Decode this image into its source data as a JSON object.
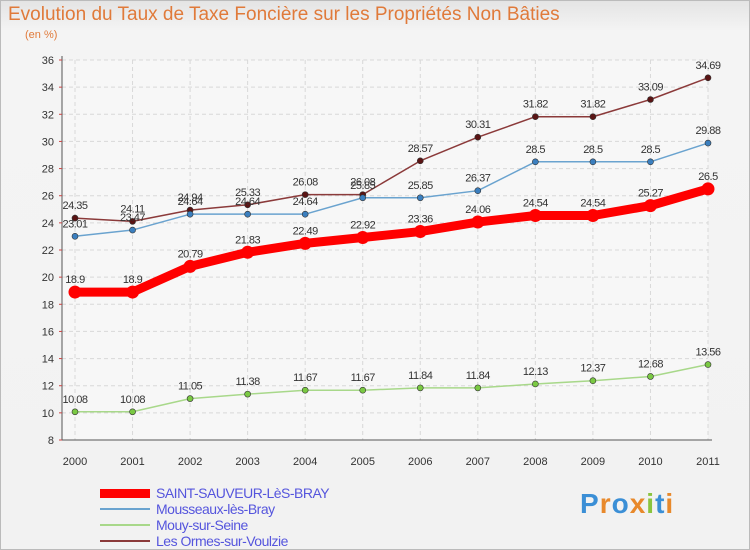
{
  "header": {
    "title": "Evolution du Taux de Taxe Foncière sur les Propriétés Non Bâties",
    "subtitle": "(en %)"
  },
  "logo": {
    "text": "Proxiti",
    "colors": [
      "#3b8fd6",
      "#e8892b",
      "#3b8fd6",
      "#e8892b",
      "#8ac43f",
      "#3b8fd6",
      "#e8892b"
    ]
  },
  "chart_data": {
    "type": "line",
    "title": "Evolution du Taux de Taxe Foncière sur les Propriétés Non Bâties",
    "ylabel": "(en %)",
    "categories": [
      "2000",
      "2001",
      "2002",
      "2003",
      "2004",
      "2005",
      "2006",
      "2007",
      "2008",
      "2009",
      "2010",
      "2011"
    ],
    "ylim": [
      8,
      36
    ],
    "yticks": [
      "8",
      "10",
      "12",
      "14",
      "16",
      "18",
      "20",
      "22",
      "24",
      "26",
      "28",
      "30",
      "32",
      "34",
      "36"
    ],
    "grid": true,
    "legend_position": "bottom",
    "series": [
      {
        "name": "Les Ormes-sur-Voulzie",
        "color": "#8b3a3a",
        "dot": "#5a1414",
        "values": [
          24.35,
          24.11,
          24.94,
          25.33,
          26.08,
          26.08,
          28.57,
          30.31,
          31.82,
          31.82,
          33.09,
          34.69
        ],
        "labels": [
          "24.35",
          "24.11",
          "24.94",
          "25.33",
          "26.08",
          "26.08",
          "28.57",
          "30.31",
          "31.82",
          "31.82",
          "33.09",
          "34.69"
        ]
      },
      {
        "name": "Mousseaux-lès-Bray",
        "color": "#6aa3cf",
        "dot": "#3b7fbf",
        "values": [
          23.01,
          23.47,
          24.64,
          24.64,
          24.64,
          25.85,
          25.85,
          26.37,
          28.5,
          28.5,
          28.5,
          29.88
        ],
        "labels": [
          "23.01",
          "23.47",
          "24.64",
          "24.64",
          "24.64",
          "25.85",
          "25.85",
          "26.37",
          "28.5",
          "28.5",
          "28.5",
          "29.88"
        ]
      },
      {
        "name": "Mouy-sur-Seine",
        "color": "#a8d88a",
        "dot": "#7ac943",
        "values": [
          10.08,
          10.08,
          11.05,
          11.38,
          11.67,
          11.67,
          11.84,
          11.84,
          12.13,
          12.37,
          12.68,
          13.56
        ],
        "labels": [
          "10.08",
          "10.08",
          "11.05",
          "11.38",
          "11.67",
          "11.67",
          "11.84",
          "11.84",
          "12.13",
          "12.37",
          "12.68",
          "13.56"
        ]
      },
      {
        "name": "SAINT-SAUVEUR-LèS-BRAY",
        "color": "#ff0000",
        "dot": "#ff0000",
        "values": [
          18.9,
          18.9,
          20.79,
          21.83,
          22.49,
          22.92,
          23.36,
          24.06,
          24.54,
          24.54,
          25.27,
          26.5
        ],
        "labels": [
          "18.9",
          "18.9",
          "20.79",
          "21.83",
          "22.49",
          "22.92",
          "23.36",
          "24.06",
          "24.54",
          "24.54",
          "25.27",
          "26.5"
        ]
      }
    ],
    "legend_order": [
      "SAINT-SAUVEUR-LèS-BRAY",
      "Mousseaux-lès-Bray",
      "Mouy-sur-Seine",
      "Les Ormes-sur-Voulzie"
    ]
  }
}
